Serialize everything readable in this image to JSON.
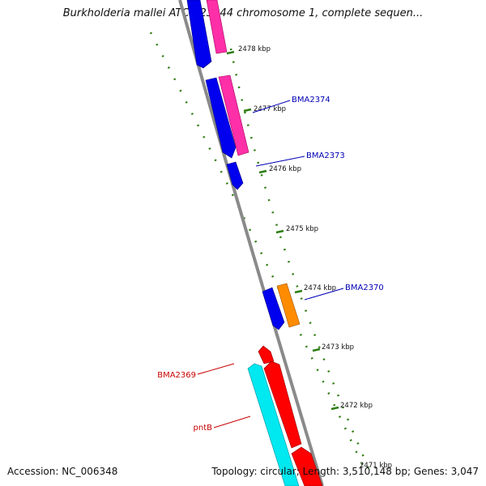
{
  "title": "Burkholderia mallei ATCC 23344 chromosome 1, complete sequen...",
  "footer": {
    "accession_label": "Accession: NC_006348",
    "topology_label": "Topology: circular;",
    "length_label": "Length: 3,510,148 bp;",
    "genes_label": "Genes: 3,047"
  },
  "scale_marks": [
    {
      "label": "2478 kbp"
    },
    {
      "label": "2477 kbp"
    },
    {
      "label": "2476 kbp"
    },
    {
      "label": "2475 kbp"
    },
    {
      "label": "2474 kbp"
    },
    {
      "label": "2473 kbp"
    },
    {
      "label": "2472 kbp"
    },
    {
      "label": "2471 kbp"
    }
  ],
  "gene_labels": [
    {
      "name": "BMA2374",
      "color": "#0000b4"
    },
    {
      "name": "BMA2373",
      "color": "#0000b4"
    },
    {
      "name": "BMA2370",
      "color": "#0000b4"
    },
    {
      "name": "BMA2369",
      "color": "#c80000"
    },
    {
      "name": "pntB",
      "color": "#c80000"
    }
  ],
  "colors": {
    "backbone": "#808080",
    "tick": "#2e7d12",
    "gene_blue": "#0000ee",
    "gene_magenta": "#ff2fa8",
    "gene_orange": "#ff8c00",
    "gene_red": "#ff0000",
    "gene_cyan": "#00e8f0"
  }
}
